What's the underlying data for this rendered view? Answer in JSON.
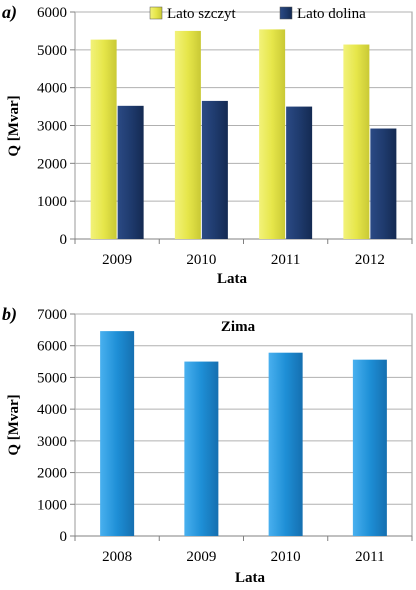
{
  "chart_data": [
    {
      "type": "bar",
      "panel_label": "a)",
      "title": "",
      "categories": [
        "2009",
        "2010",
        "2011",
        "2012"
      ],
      "series": [
        {
          "name": "Lato szczyt",
          "values": [
            5270,
            5500,
            5540,
            5140
          ],
          "color": "#e6e64a"
        },
        {
          "name": "Lato dolina",
          "values": [
            3520,
            3650,
            3500,
            2920
          ],
          "color": "#1f3b6e"
        }
      ],
      "xlabel": "Lata",
      "ylabel": "Q  [Mvar]",
      "ylim": [
        0,
        6000
      ],
      "yticks": [
        "0",
        "1000",
        "2000",
        "3000",
        "4000",
        "5000",
        "6000"
      ],
      "grid": true,
      "legend": "top"
    },
    {
      "type": "bar",
      "panel_label": "b)",
      "title": "Zima",
      "categories": [
        "2008",
        "2009",
        "2010",
        "2011"
      ],
      "series": [
        {
          "name": "",
          "values": [
            6460,
            5500,
            5780,
            5560
          ],
          "color": "#1e8fd6"
        }
      ],
      "xlabel": "Lata",
      "ylabel": "Q  [Mvar]",
      "ylim": [
        0,
        7000
      ],
      "yticks": [
        "0",
        "1000",
        "2000",
        "3000",
        "4000",
        "5000",
        "6000",
        "7000"
      ],
      "grid": true,
      "legend": "none"
    }
  ]
}
